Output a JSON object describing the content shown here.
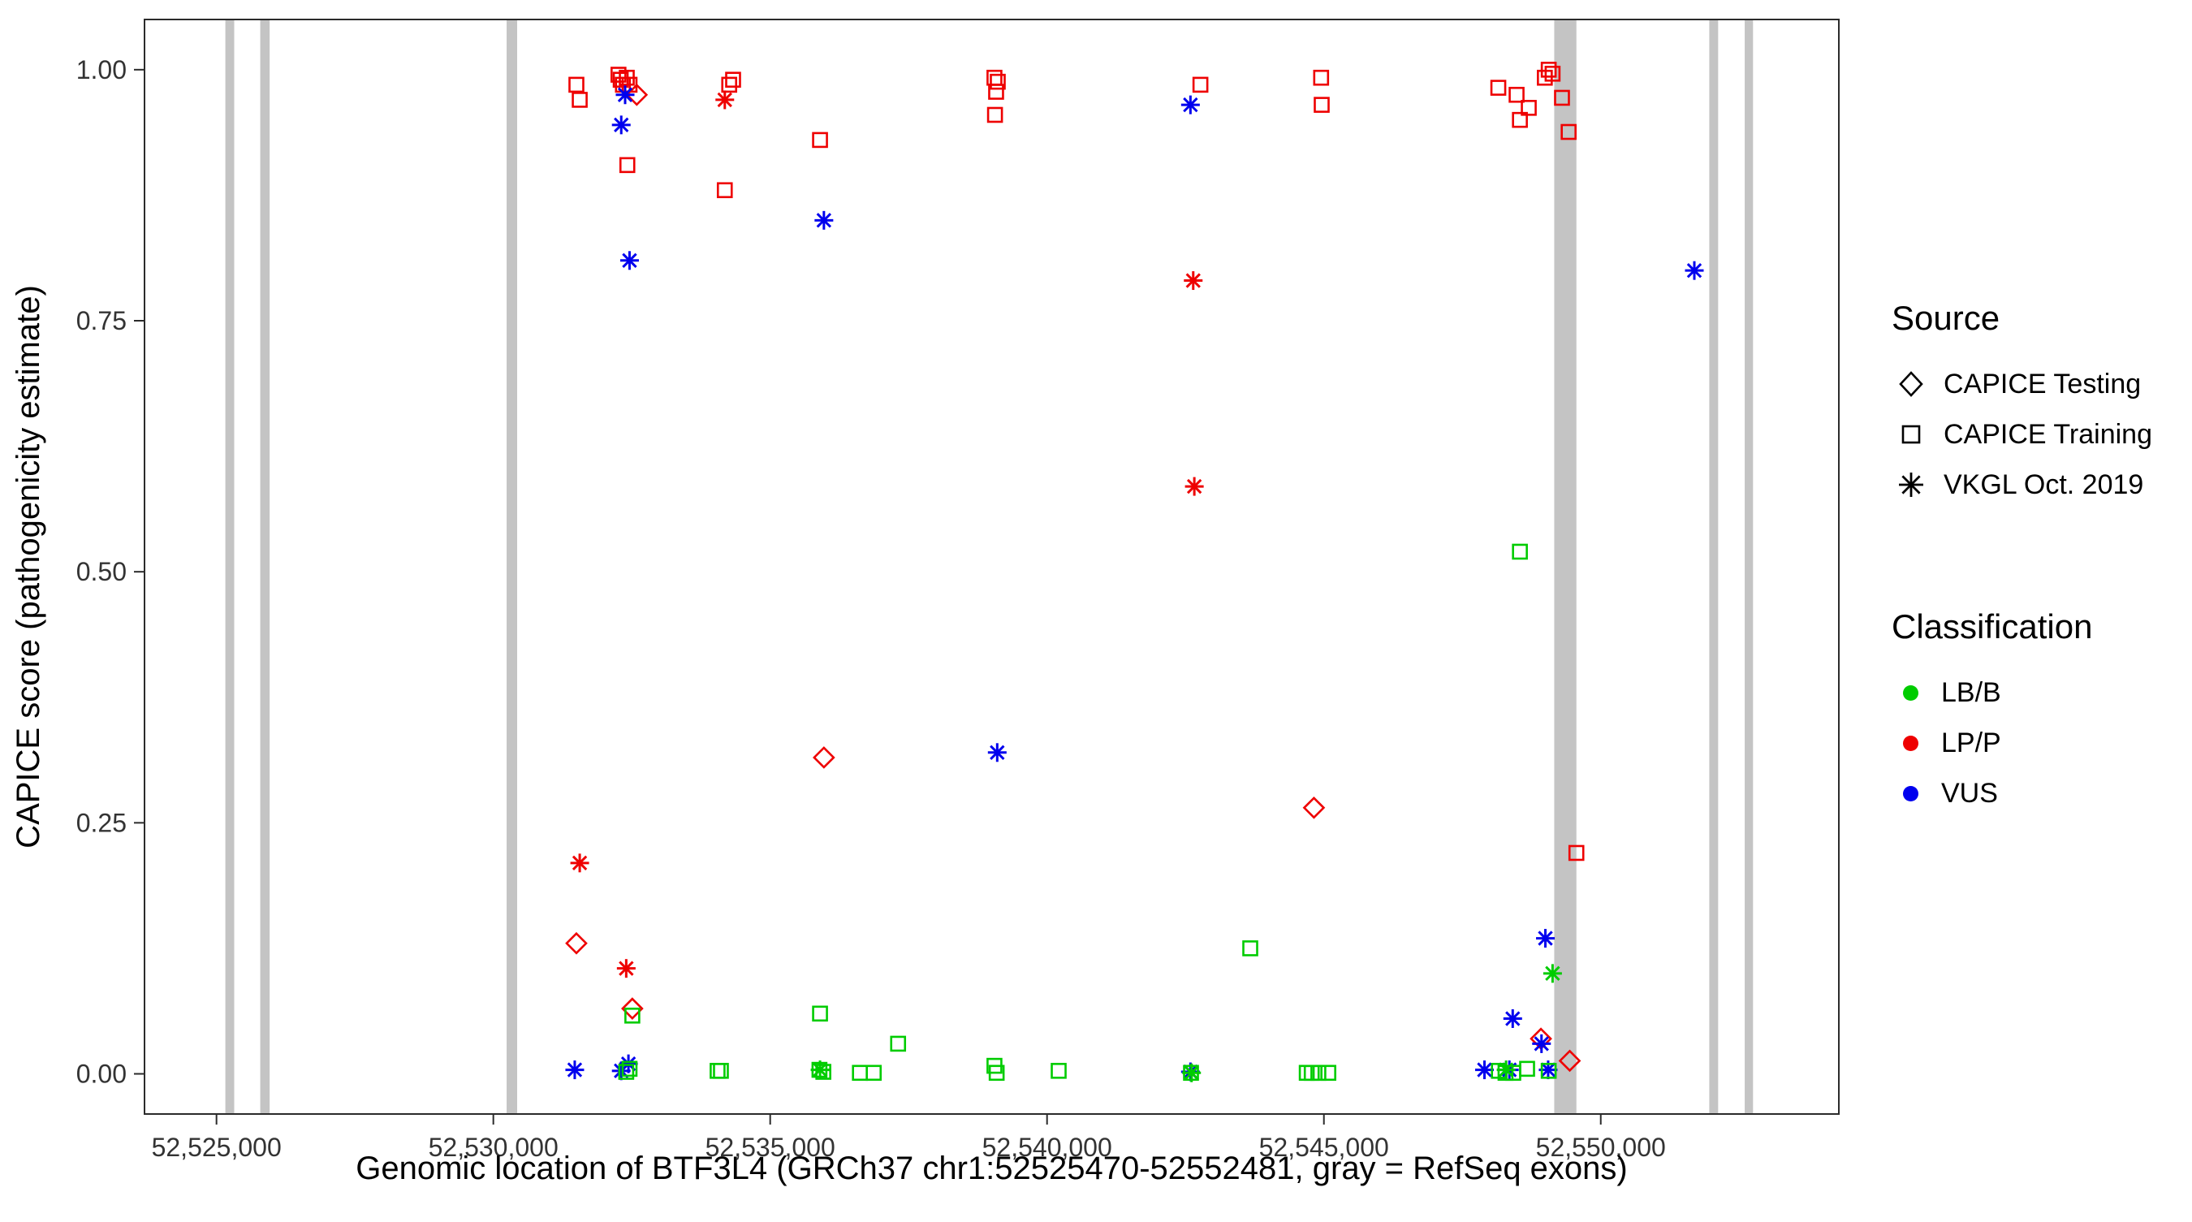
{
  "chart_data": {
    "type": "scatter",
    "title": "",
    "xlabel": "Genomic location of BTF3L4 (GRCh37 chr1:52525470-52552481, gray = RefSeq exons)",
    "ylabel": "CAPICE score (pathogenicity estimate)",
    "x_domain": [
      52523700,
      52554300
    ],
    "y_domain": [
      -0.04,
      1.05
    ],
    "grid": false,
    "x_ticks": [
      {
        "v": 52525000,
        "label": "52,525,000"
      },
      {
        "v": 52530000,
        "label": "52,530,000"
      },
      {
        "v": 52535000,
        "label": "52,535,000"
      },
      {
        "v": 52540000,
        "label": "52,540,000"
      },
      {
        "v": 52545000,
        "label": "52,545,000"
      },
      {
        "v": 52550000,
        "label": "52,550,000"
      }
    ],
    "y_ticks": [
      {
        "v": 0.0,
        "label": "0.00"
      },
      {
        "v": 0.25,
        "label": "0.25"
      },
      {
        "v": 0.5,
        "label": "0.50"
      },
      {
        "v": 0.75,
        "label": "0.75"
      },
      {
        "v": 1.0,
        "label": "1.00"
      }
    ],
    "exon_color": "#c4c4c4",
    "exons": [
      [
        52525160,
        52525320
      ],
      [
        52525790,
        52525960
      ],
      [
        52530240,
        52530430
      ],
      [
        52549160,
        52549560
      ],
      [
        52551960,
        52552120
      ],
      [
        52552600,
        52552750
      ]
    ],
    "colors": {
      "g": "#00cc00",
      "r": "#ee0000",
      "b": "#0000ee"
    },
    "shapes": {
      "d": "diamond",
      "s": "square",
      "a": "asterisk"
    },
    "point_format": "[genomic_x, capice_score, source(d=CAPICE Testing, s=CAPICE Training, a=VKGL Oct. 2019), class(g=LB/B, r=LP/P, b=VUS)]",
    "points": [
      [
        52531500,
        0.985,
        "s",
        "r"
      ],
      [
        52531560,
        0.97,
        "s",
        "r"
      ],
      [
        52532260,
        0.995,
        "s",
        "r"
      ],
      [
        52532300,
        0.99,
        "s",
        "r"
      ],
      [
        52532340,
        0.985,
        "s",
        "r"
      ],
      [
        52532410,
        0.992,
        "s",
        "r"
      ],
      [
        52532460,
        0.985,
        "s",
        "r"
      ],
      [
        52532420,
        0.905,
        "s",
        "r"
      ],
      [
        52534180,
        0.88,
        "s",
        "r"
      ],
      [
        52534260,
        0.985,
        "s",
        "r"
      ],
      [
        52534330,
        0.99,
        "s",
        "r"
      ],
      [
        52535900,
        0.93,
        "s",
        "r"
      ],
      [
        52539050,
        0.992,
        "s",
        "r"
      ],
      [
        52539110,
        0.988,
        "s",
        "r"
      ],
      [
        52539080,
        0.978,
        "s",
        "r"
      ],
      [
        52539060,
        0.955,
        "s",
        "r"
      ],
      [
        52542770,
        0.985,
        "s",
        "r"
      ],
      [
        52544950,
        0.992,
        "s",
        "r"
      ],
      [
        52544960,
        0.965,
        "s",
        "r"
      ],
      [
        52548150,
        0.982,
        "s",
        "r"
      ],
      [
        52548480,
        0.975,
        "s",
        "r"
      ],
      [
        52548540,
        0.95,
        "s",
        "r"
      ],
      [
        52548700,
        0.962,
        "s",
        "r"
      ],
      [
        52548990,
        0.992,
        "s",
        "r"
      ],
      [
        52549060,
        1.0,
        "s",
        "r"
      ],
      [
        52549130,
        0.996,
        "s",
        "r"
      ],
      [
        52549300,
        0.972,
        "s",
        "r"
      ],
      [
        52549420,
        0.938,
        "s",
        "r"
      ],
      [
        52549560,
        0.22,
        "s",
        "r"
      ],
      [
        52532590,
        0.975,
        "d",
        "r"
      ],
      [
        52535970,
        0.315,
        "d",
        "r"
      ],
      [
        52544820,
        0.265,
        "d",
        "r"
      ],
      [
        52531500,
        0.13,
        "d",
        "r"
      ],
      [
        52532510,
        0.065,
        "d",
        "r"
      ],
      [
        52548920,
        0.035,
        "d",
        "r"
      ],
      [
        52549440,
        0.013,
        "d",
        "r"
      ],
      [
        52534180,
        0.97,
        "a",
        "r"
      ],
      [
        52542640,
        0.79,
        "a",
        "r"
      ],
      [
        52542660,
        0.585,
        "a",
        "r"
      ],
      [
        52531560,
        0.21,
        "a",
        "r"
      ],
      [
        52532400,
        0.105,
        "a",
        "r"
      ],
      [
        52532380,
        0.975,
        "a",
        "b"
      ],
      [
        52532310,
        0.945,
        "a",
        "b"
      ],
      [
        52532460,
        0.81,
        "a",
        "b"
      ],
      [
        52535970,
        0.85,
        "a",
        "b"
      ],
      [
        52542590,
        0.965,
        "a",
        "b"
      ],
      [
        52539100,
        0.32,
        "a",
        "b"
      ],
      [
        52551690,
        0.8,
        "a",
        "b"
      ],
      [
        52549000,
        0.135,
        "a",
        "b"
      ],
      [
        52548410,
        0.055,
        "a",
        "b"
      ],
      [
        52548930,
        0.03,
        "a",
        "b"
      ],
      [
        52547900,
        0.004,
        "a",
        "b"
      ],
      [
        52531470,
        0.004,
        "a",
        "b"
      ],
      [
        52532310,
        0.003,
        "a",
        "b"
      ],
      [
        52532440,
        0.01,
        "a",
        "b"
      ],
      [
        52542590,
        0.002,
        "a",
        "b"
      ],
      [
        52549050,
        0.004,
        "a",
        "b"
      ],
      [
        52548350,
        0.004,
        "a",
        "b"
      ],
      [
        52548540,
        0.52,
        "s",
        "g"
      ],
      [
        52543670,
        0.125,
        "s",
        "g"
      ],
      [
        52535900,
        0.06,
        "s",
        "g"
      ],
      [
        52537310,
        0.03,
        "s",
        "g"
      ],
      [
        52532510,
        0.058,
        "s",
        "g"
      ],
      [
        52532400,
        0.002,
        "s",
        "g"
      ],
      [
        52532460,
        0.005,
        "s",
        "g"
      ],
      [
        52534050,
        0.003,
        "s",
        "g"
      ],
      [
        52534110,
        0.003,
        "s",
        "g"
      ],
      [
        52535890,
        0.004,
        "s",
        "g"
      ],
      [
        52535960,
        0.002,
        "s",
        "g"
      ],
      [
        52536620,
        0.001,
        "s",
        "g"
      ],
      [
        52536870,
        0.001,
        "s",
        "g"
      ],
      [
        52539050,
        0.008,
        "s",
        "g"
      ],
      [
        52539090,
        0.001,
        "s",
        "g"
      ],
      [
        52540210,
        0.003,
        "s",
        "g"
      ],
      [
        52542600,
        0.001,
        "s",
        "g"
      ],
      [
        52544690,
        0.001,
        "s",
        "g"
      ],
      [
        52544780,
        0.001,
        "s",
        "g"
      ],
      [
        52544900,
        0.001,
        "s",
        "g"
      ],
      [
        52545080,
        0.001,
        "s",
        "g"
      ],
      [
        52548160,
        0.003,
        "s",
        "g"
      ],
      [
        52548280,
        0.001,
        "s",
        "g"
      ],
      [
        52548420,
        0.001,
        "s",
        "g"
      ],
      [
        52548670,
        0.005,
        "s",
        "g"
      ],
      [
        52549060,
        0.003,
        "s",
        "g"
      ],
      [
        52549130,
        0.1,
        "a",
        "g"
      ],
      [
        52535900,
        0.004,
        "a",
        "g"
      ],
      [
        52548290,
        0.004,
        "a",
        "g"
      ],
      [
        52542610,
        0.001,
        "a",
        "g"
      ]
    ],
    "legend": {
      "source_title": "Source",
      "source_items": [
        {
          "label": "CAPICE Testing",
          "shape": "diamond"
        },
        {
          "label": "CAPICE Training",
          "shape": "square"
        },
        {
          "label": "VKGL Oct. 2019",
          "shape": "asterisk"
        }
      ],
      "class_title": "Classification",
      "class_items": [
        {
          "label": "LB/B",
          "color": "#00cc00"
        },
        {
          "label": "LP/P",
          "color": "#ee0000"
        },
        {
          "label": "VUS",
          "color": "#0000ee"
        }
      ],
      "legend_position": "right"
    }
  }
}
